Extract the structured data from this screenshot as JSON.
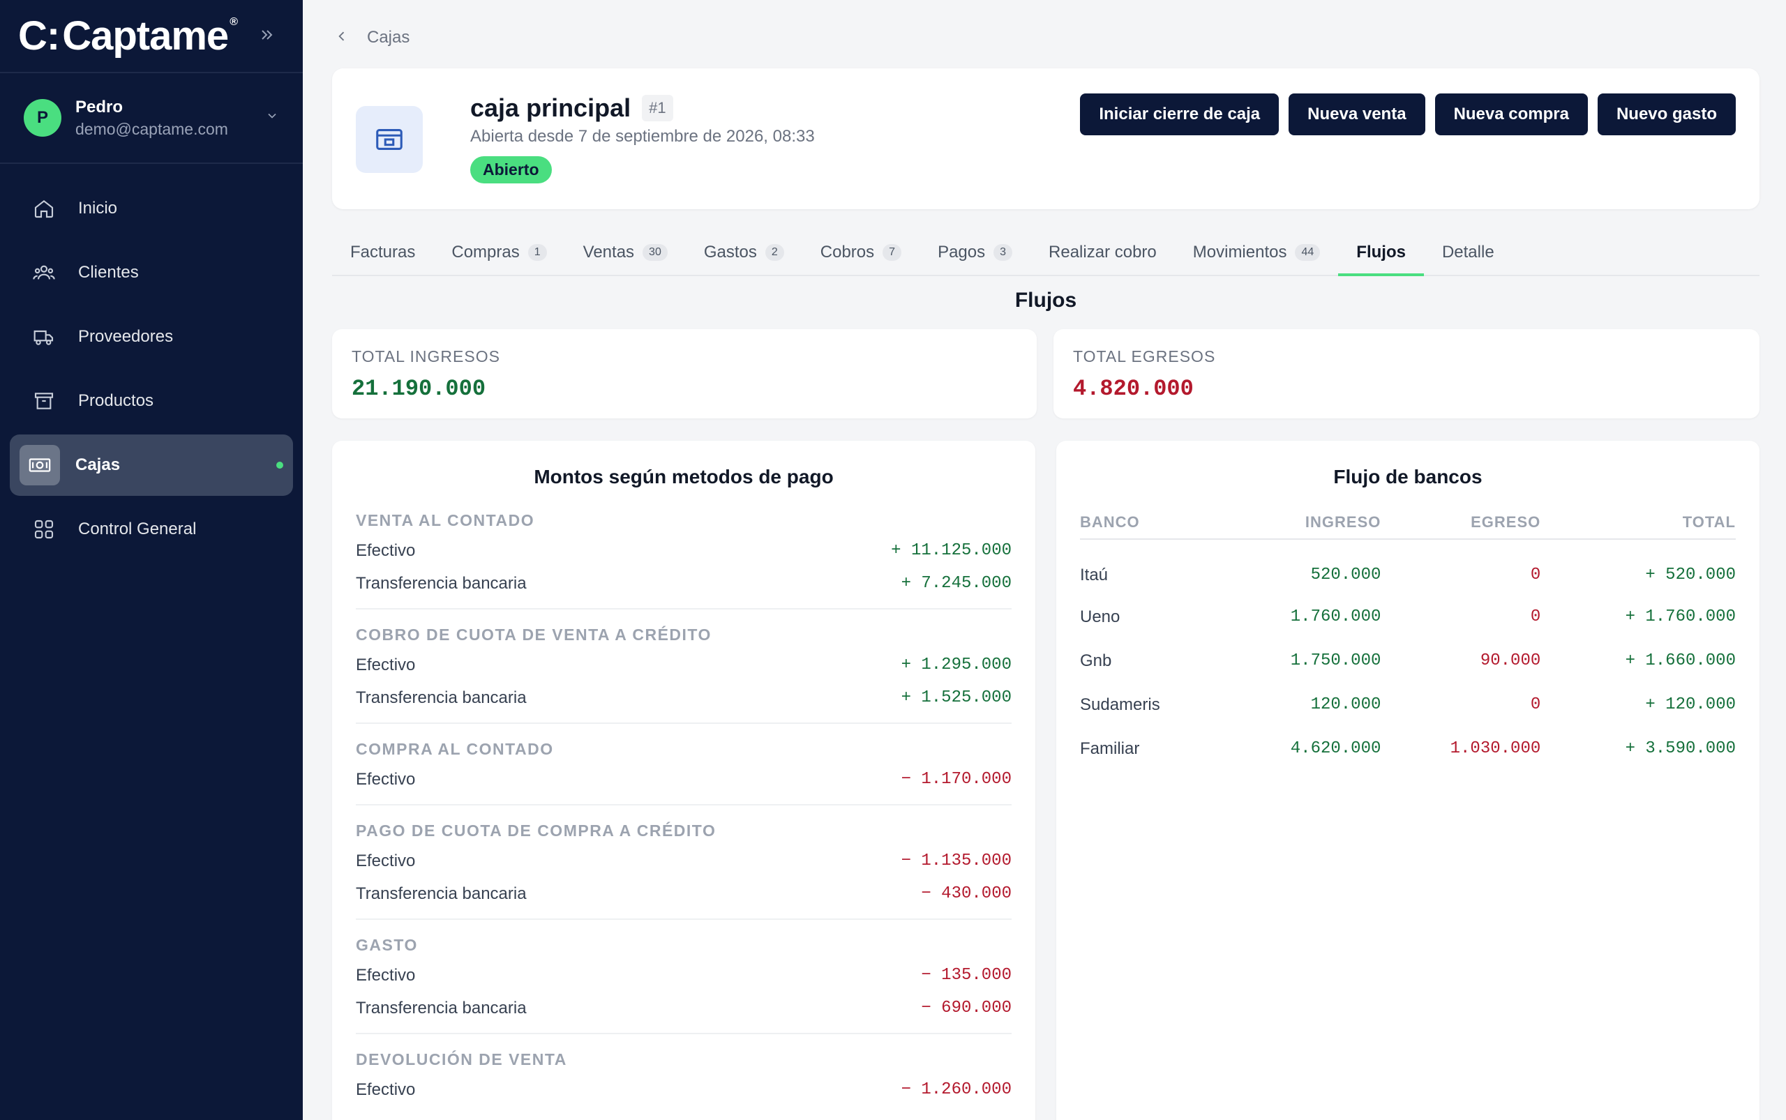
{
  "app": {
    "brand": "Captame",
    "brand_mark": "C:",
    "registered": "®"
  },
  "user": {
    "initial": "P",
    "name": "Pedro",
    "email": "demo@captame.com"
  },
  "sidebar": {
    "items": [
      {
        "label": "Inicio",
        "icon": "home-icon"
      },
      {
        "label": "Clientes",
        "icon": "users-icon"
      },
      {
        "label": "Proveedores",
        "icon": "truck-icon"
      },
      {
        "label": "Productos",
        "icon": "archive-icon"
      },
      {
        "label": "Cajas",
        "icon": "cash-register-icon",
        "active": true
      },
      {
        "label": "Control General",
        "icon": "grid-icon"
      }
    ]
  },
  "breadcrumb": {
    "label": "Cajas"
  },
  "header": {
    "title": "caja principal",
    "id_badge": "#1",
    "subtitle": "Abierta desde 7 de septiembre de 2026, 08:33",
    "status": "Abierto",
    "actions": {
      "close": "Iniciar cierre de caja",
      "sale": "Nueva venta",
      "purchase": "Nueva compra",
      "expense": "Nuevo gasto"
    }
  },
  "tabs": [
    {
      "label": "Facturas",
      "count": ""
    },
    {
      "label": "Compras",
      "count": "1"
    },
    {
      "label": "Ventas",
      "count": "30"
    },
    {
      "label": "Gastos",
      "count": "2"
    },
    {
      "label": "Cobros",
      "count": "7"
    },
    {
      "label": "Pagos",
      "count": "3"
    },
    {
      "label": "Realizar cobro",
      "count": ""
    },
    {
      "label": "Movimientos",
      "count": "44"
    },
    {
      "label": "Flujos",
      "count": "",
      "active": true
    },
    {
      "label": "Detalle",
      "count": ""
    }
  ],
  "flows": {
    "title": "Flujos",
    "total_income_label": "TOTAL INGRESOS",
    "total_income": "21.190.000",
    "total_expense_label": "TOTAL EGRESOS",
    "total_expense": "4.820.000"
  },
  "payment_methods": {
    "title": "Montos según metodos de pago",
    "groups": [
      {
        "category": "VENTA AL CONTADO",
        "rows": [
          {
            "method": "Efectivo",
            "amount": "+ 11.125.000",
            "sign": "in"
          },
          {
            "method": "Transferencia bancaria",
            "amount": "+ 7.245.000",
            "sign": "in"
          }
        ]
      },
      {
        "category": "COBRO DE CUOTA DE VENTA A CRÉDITO",
        "rows": [
          {
            "method": "Efectivo",
            "amount": "+ 1.295.000",
            "sign": "in"
          },
          {
            "method": "Transferencia bancaria",
            "amount": "+ 1.525.000",
            "sign": "in"
          }
        ]
      },
      {
        "category": "COMPRA AL CONTADO",
        "rows": [
          {
            "method": "Efectivo",
            "amount": "− 1.170.000",
            "sign": "out"
          }
        ]
      },
      {
        "category": "PAGO DE CUOTA DE COMPRA A CRÉDITO",
        "rows": [
          {
            "method": "Efectivo",
            "amount": "− 1.135.000",
            "sign": "out"
          },
          {
            "method": "Transferencia bancaria",
            "amount": "− 430.000",
            "sign": "out"
          }
        ]
      },
      {
        "category": "GASTO",
        "rows": [
          {
            "method": "Efectivo",
            "amount": "− 135.000",
            "sign": "out"
          },
          {
            "method": "Transferencia bancaria",
            "amount": "− 690.000",
            "sign": "out"
          }
        ]
      },
      {
        "category": "DEVOLUCIÓN DE VENTA",
        "rows": [
          {
            "method": "Efectivo",
            "amount": "− 1.260.000",
            "sign": "out"
          }
        ]
      }
    ]
  },
  "bank_flow": {
    "title": "Flujo de bancos",
    "columns": [
      "BANCO",
      "INGRESO",
      "EGRESO",
      "TOTAL"
    ],
    "rows": [
      {
        "bank": "Itaú",
        "income": "520.000",
        "expense": "0",
        "total": "+ 520.000"
      },
      {
        "bank": "Ueno",
        "income": "1.760.000",
        "expense": "0",
        "total": "+ 1.760.000"
      },
      {
        "bank": "Gnb",
        "income": "1.750.000",
        "expense": "90.000",
        "total": "+ 1.660.000"
      },
      {
        "bank": "Sudameris",
        "income": "120.000",
        "expense": "0",
        "total": "+ 120.000"
      },
      {
        "bank": "Familiar",
        "income": "4.620.000",
        "expense": "1.030.000",
        "total": "+ 3.590.000"
      }
    ]
  },
  "colors": {
    "sidebar_bg": "#0c1838",
    "accent_green": "#4ade80",
    "income": "#15703b",
    "expense": "#b3192d"
  }
}
